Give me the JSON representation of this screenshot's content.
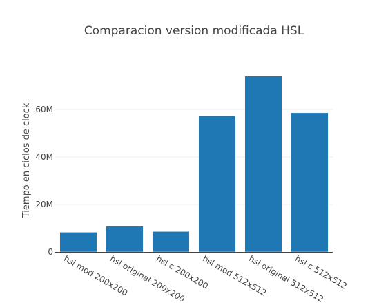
{
  "chart_data": {
    "type": "bar",
    "title": "Comparacion version modificada HSL",
    "xlabel": "",
    "ylabel": "Tiempo en ciclos de clock",
    "categories": [
      "hsl mod 200x200",
      "hsl original 200x200",
      "hsl c 200x200",
      "hsl mod 512x512",
      "hsl original 512x512",
      "hsl c 512x512"
    ],
    "values": [
      8300000,
      10800000,
      8600000,
      57300000,
      74000000,
      58600000
    ],
    "ylim": [
      0,
      80000000
    ],
    "yticks": [
      0,
      20000000,
      40000000,
      60000000
    ],
    "ytick_labels": [
      "0",
      "20M",
      "40M",
      "60M"
    ],
    "grid": true,
    "bar_color": "#1f77b4",
    "legend": "none"
  }
}
